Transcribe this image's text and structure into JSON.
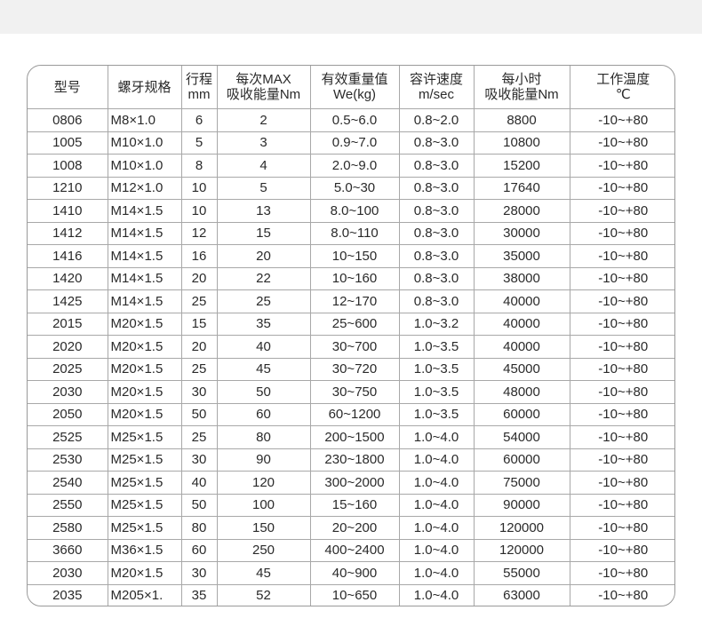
{
  "headers": [
    [
      "型号"
    ],
    [
      "螺牙规格"
    ],
    [
      "行程",
      "mm"
    ],
    [
      "每次MAX",
      "吸收能量Nm"
    ],
    [
      "有效重量值",
      "We(kg)"
    ],
    [
      "容许速度",
      "m/sec"
    ],
    [
      "每小时",
      "吸收能量Nm"
    ],
    [
      "工作温度",
      "℃"
    ]
  ],
  "rows": [
    [
      "0806",
      "M8×1.0",
      "6",
      "2",
      "0.5~6.0",
      "0.8~2.0",
      "8800",
      "-10~+80"
    ],
    [
      "1005",
      "M10×1.0",
      "5",
      "3",
      "0.9~7.0",
      "0.8~3.0",
      "10800",
      "-10~+80"
    ],
    [
      "1008",
      "M10×1.0",
      "8",
      "4",
      "2.0~9.0",
      "0.8~3.0",
      "15200",
      "-10~+80"
    ],
    [
      "1210",
      "M12×1.0",
      "10",
      "5",
      "5.0~30",
      "0.8~3.0",
      "17640",
      "-10~+80"
    ],
    [
      "1410",
      "M14×1.5",
      "10",
      "13",
      "8.0~100",
      "0.8~3.0",
      "28000",
      "-10~+80"
    ],
    [
      "1412",
      "M14×1.5",
      "12",
      "15",
      "8.0~110",
      "0.8~3.0",
      "30000",
      "-10~+80"
    ],
    [
      "1416",
      "M14×1.5",
      "16",
      "20",
      "10~150",
      "0.8~3.0",
      "35000",
      "-10~+80"
    ],
    [
      "1420",
      "M14×1.5",
      "20",
      "22",
      "10~160",
      "0.8~3.0",
      "38000",
      "-10~+80"
    ],
    [
      "1425",
      "M14×1.5",
      "25",
      "25",
      "12~170",
      "0.8~3.0",
      "40000",
      "-10~+80"
    ],
    [
      "2015",
      "M20×1.5",
      "15",
      "35",
      "25~600",
      "1.0~3.2",
      "40000",
      "-10~+80"
    ],
    [
      "2020",
      "M20×1.5",
      "20",
      "40",
      "30~700",
      "1.0~3.5",
      "40000",
      "-10~+80"
    ],
    [
      "2025",
      "M20×1.5",
      "25",
      "45",
      "30~720",
      "1.0~3.5",
      "45000",
      "-10~+80"
    ],
    [
      "2030",
      "M20×1.5",
      "30",
      "50",
      "30~750",
      "1.0~3.5",
      "48000",
      "-10~+80"
    ],
    [
      "2050",
      "M20×1.5",
      "50",
      "60",
      "60~1200",
      "1.0~3.5",
      "60000",
      "-10~+80"
    ],
    [
      "2525",
      "M25×1.5",
      "25",
      "80",
      "200~1500",
      "1.0~4.0",
      "54000",
      "-10~+80"
    ],
    [
      "2530",
      "M25×1.5",
      "30",
      "90",
      "230~1800",
      "1.0~4.0",
      "60000",
      "-10~+80"
    ],
    [
      "2540",
      "M25×1.5",
      "40",
      "120",
      "300~2000",
      "1.0~4.0",
      "75000",
      "-10~+80"
    ],
    [
      "2550",
      "M25×1.5",
      "50",
      "100",
      "15~160",
      "1.0~4.0",
      "90000",
      "-10~+80"
    ],
    [
      "2580",
      "M25×1.5",
      "80",
      "150",
      "20~200",
      "1.0~4.0",
      "120000",
      "-10~+80"
    ],
    [
      "3660",
      "M36×1.5",
      "60",
      "250",
      "400~2400",
      "1.0~4.0",
      "120000",
      "-10~+80"
    ],
    [
      "2030",
      "M20×1.5",
      "30",
      "45",
      "40~900",
      "1.0~4.0",
      "55000",
      "-10~+80"
    ],
    [
      "2035",
      "M205×1.",
      "35",
      "52",
      "10~650",
      "1.0~4.0",
      "63000",
      "-10~+80"
    ]
  ]
}
